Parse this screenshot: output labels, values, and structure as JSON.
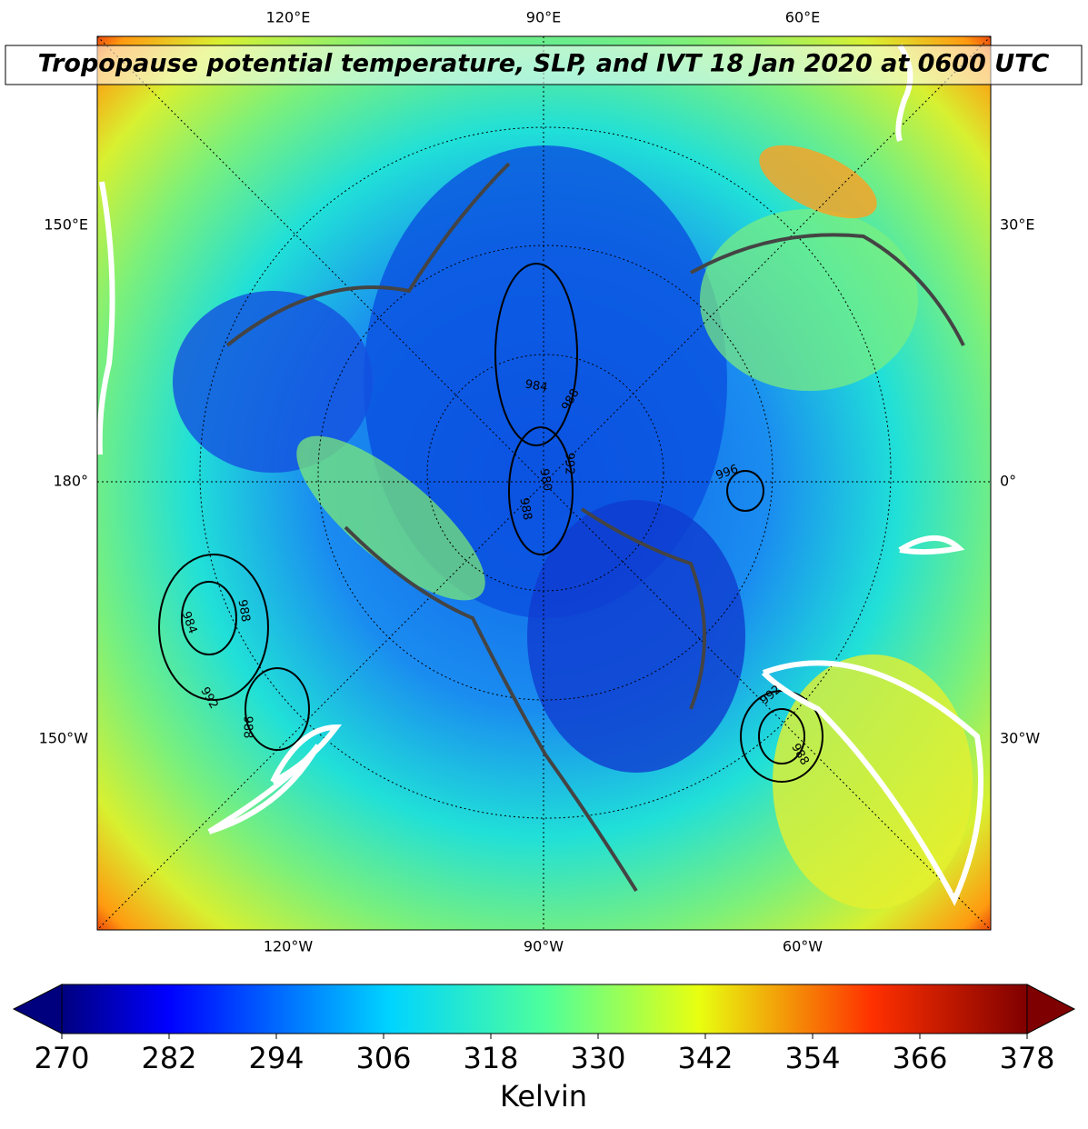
{
  "title": "Tropopause potential temperature, SLP, and IVT 18 Jan 2020 at 0600 UTC",
  "map": {
    "top_labels": [
      "120°E",
      "90°E",
      "60°E"
    ],
    "bottom_labels": [
      "120°W",
      "90°W",
      "60°W"
    ],
    "left_labels": [
      "150°E",
      "180°",
      "150°W"
    ],
    "right_labels": [
      "30°E",
      "0°",
      "30°W"
    ],
    "contour_labels": [
      "984",
      "988",
      "992",
      "988",
      "984",
      "988",
      "980",
      "988",
      "992",
      "996",
      "992",
      "988"
    ]
  },
  "colorbar": {
    "label": "Kelvin",
    "lim": [
      270,
      378
    ],
    "ticks": [
      270,
      282,
      294,
      306,
      318,
      330,
      342,
      354,
      366,
      378
    ]
  }
}
